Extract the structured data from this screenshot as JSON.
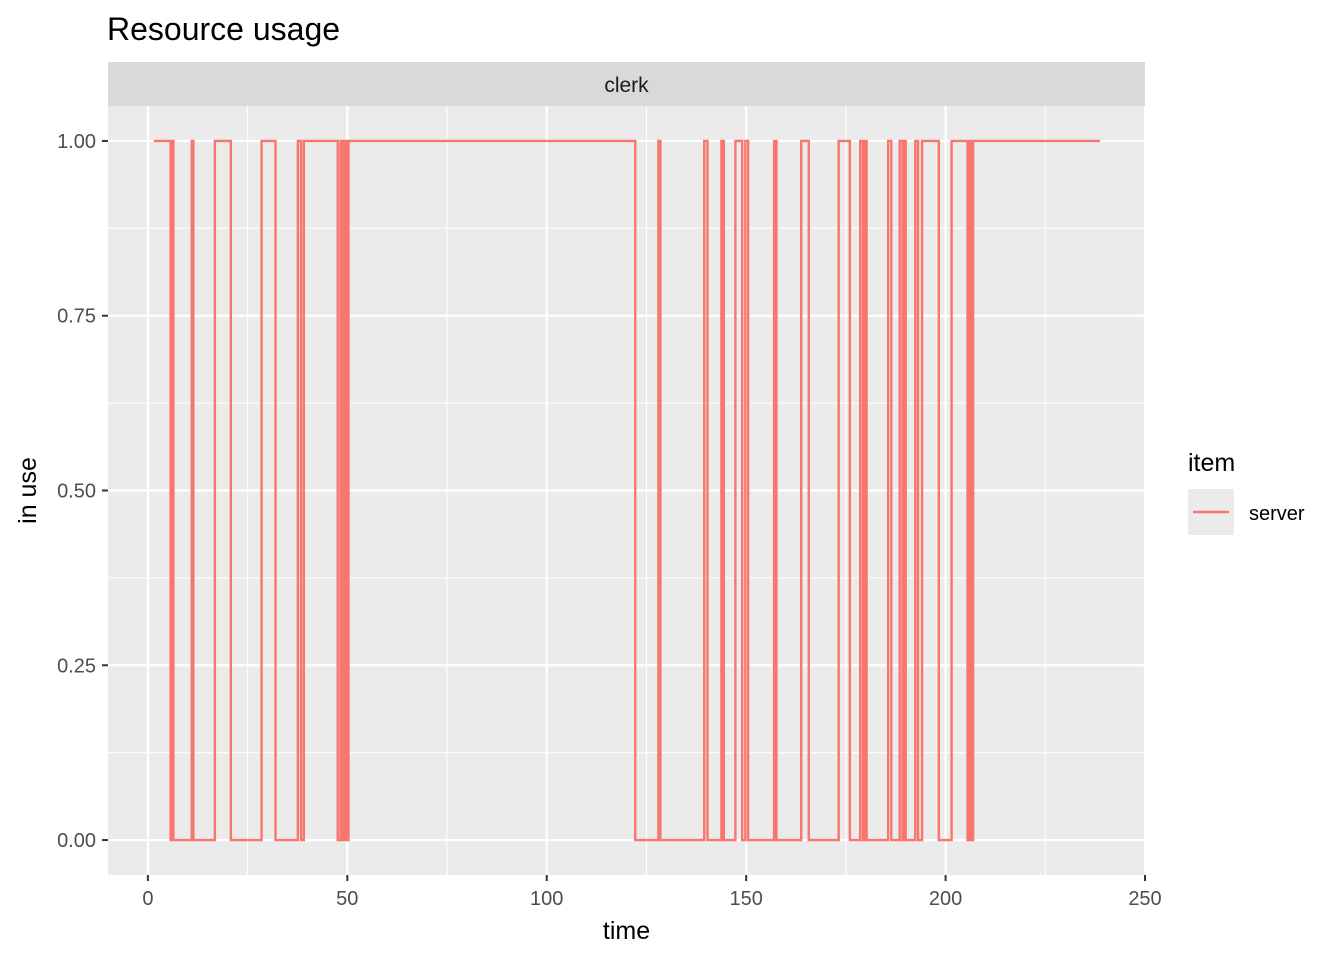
{
  "chart_data": {
    "type": "line",
    "title": "Resource usage",
    "facet": "clerk",
    "xlabel": "time",
    "ylabel": "in use",
    "xlim": [
      -10,
      250
    ],
    "ylim": [
      -0.05,
      1.05
    ],
    "x_ticks": [
      0,
      50,
      100,
      150,
      200,
      250
    ],
    "y_ticks": [
      0,
      0.25,
      0.5,
      0.75,
      1
    ],
    "x_tick_labels": [
      "0",
      "50",
      "100",
      "150",
      "200",
      "250"
    ],
    "y_tick_labels": [
      "0.00",
      "0.25",
      "0.50",
      "0.75",
      "1.00"
    ],
    "grid": true,
    "legend": {
      "title": "item",
      "position": "right"
    },
    "series": [
      {
        "name": "server",
        "color": "#F8766D",
        "step": true,
        "points": [
          [
            1.5,
            1
          ],
          [
            5.7,
            1
          ],
          [
            5.7,
            0
          ],
          [
            6.0,
            0
          ],
          [
            6.0,
            1
          ],
          [
            6.4,
            1
          ],
          [
            6.4,
            0
          ],
          [
            11.0,
            0
          ],
          [
            11.0,
            1
          ],
          [
            11.4,
            1
          ],
          [
            11.4,
            0
          ],
          [
            16.8,
            0
          ],
          [
            16.8,
            1
          ],
          [
            20.8,
            1
          ],
          [
            20.8,
            0
          ],
          [
            28.5,
            0
          ],
          [
            28.5,
            1
          ],
          [
            32.0,
            1
          ],
          [
            32.0,
            0
          ],
          [
            37.6,
            0
          ],
          [
            37.6,
            1
          ],
          [
            38.4,
            1
          ],
          [
            38.4,
            0
          ],
          [
            39.1,
            0
          ],
          [
            39.1,
            1
          ],
          [
            40.0,
            1
          ],
          [
            40.0,
            1
          ],
          [
            47.6,
            1
          ],
          [
            47.6,
            0
          ],
          [
            48.3,
            0
          ],
          [
            48.3,
            1
          ],
          [
            48.8,
            1
          ],
          [
            48.8,
            0
          ],
          [
            49.4,
            0
          ],
          [
            49.4,
            1
          ],
          [
            50.0,
            1
          ],
          [
            50.0,
            0
          ],
          [
            50.3,
            0
          ],
          [
            50.3,
            1
          ],
          [
            122.2,
            1
          ],
          [
            122.2,
            0
          ],
          [
            128.0,
            0
          ],
          [
            128.0,
            1
          ],
          [
            128.5,
            1
          ],
          [
            128.5,
            0
          ],
          [
            139.5,
            0
          ],
          [
            139.5,
            1
          ],
          [
            140.3,
            1
          ],
          [
            140.3,
            0
          ],
          [
            143.8,
            0
          ],
          [
            143.8,
            1
          ],
          [
            144.4,
            1
          ],
          [
            144.4,
            0
          ],
          [
            147.3,
            0
          ],
          [
            147.3,
            1
          ],
          [
            149.0,
            1
          ],
          [
            149.0,
            0
          ],
          [
            149.8,
            0
          ],
          [
            149.8,
            1
          ],
          [
            150.5,
            1
          ],
          [
            150.5,
            0
          ],
          [
            157.0,
            0
          ],
          [
            157.0,
            1
          ],
          [
            157.6,
            1
          ],
          [
            157.6,
            0
          ],
          [
            163.8,
            0
          ],
          [
            163.8,
            1
          ],
          [
            165.7,
            1
          ],
          [
            165.7,
            0
          ],
          [
            173.2,
            0
          ],
          [
            173.2,
            1
          ],
          [
            176.0,
            1
          ],
          [
            176.0,
            0
          ],
          [
            178.6,
            0
          ],
          [
            178.6,
            1
          ],
          [
            179.3,
            1
          ],
          [
            179.3,
            0
          ],
          [
            179.8,
            0
          ],
          [
            179.8,
            1
          ],
          [
            180.2,
            1
          ],
          [
            180.2,
            0
          ],
          [
            185.6,
            0
          ],
          [
            185.6,
            1
          ],
          [
            186.4,
            1
          ],
          [
            186.4,
            0
          ],
          [
            188.5,
            0
          ],
          [
            188.5,
            1
          ],
          [
            189.2,
            1
          ],
          [
            189.2,
            0
          ],
          [
            189.7,
            0
          ],
          [
            189.7,
            1
          ],
          [
            190.0,
            1
          ],
          [
            190.0,
            0
          ],
          [
            192.4,
            0
          ],
          [
            192.4,
            1
          ],
          [
            193.1,
            1
          ],
          [
            193.1,
            0
          ],
          [
            194.1,
            0
          ],
          [
            194.1,
            1
          ],
          [
            198.3,
            1
          ],
          [
            198.3,
            0
          ],
          [
            201.5,
            0
          ],
          [
            201.5,
            1
          ],
          [
            205.5,
            1
          ],
          [
            205.5,
            0
          ],
          [
            206.1,
            0
          ],
          [
            206.1,
            1
          ],
          [
            206.6,
            1
          ],
          [
            206.6,
            0
          ],
          [
            206.9,
            0
          ],
          [
            206.9,
            1
          ],
          [
            238.7,
            1
          ]
        ]
      }
    ]
  }
}
